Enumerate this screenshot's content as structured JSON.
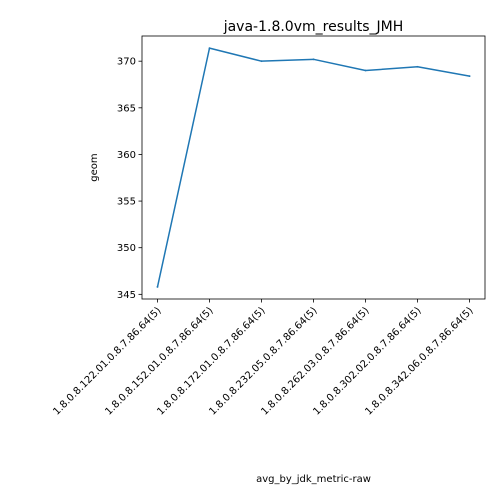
{
  "chart_data": {
    "type": "line",
    "title": "java-1.8.0vm_results_JMH",
    "xlabel": "avg_by_jdk_metric-raw",
    "ylabel": "geom",
    "categories": [
      "1.8.0.8.122.01.0.8.7.86.64(5)",
      "1.8.0.8.152.01.0.8.7.86.64(5)",
      "1.8.0.8.172.01.0.8.7.86.64(5)",
      "1.8.0.8.232.05.0.8.7.86.64(5)",
      "1.8.0.8.262.03.0.8.7.86.64(5)",
      "1.8.0.8.302.02.0.8.7.86.64(5)",
      "1.8.0.8.342.06.0.8.7.86.64(5)"
    ],
    "series": [
      {
        "values": [
          345.8,
          371.4,
          370.0,
          370.2,
          369.0,
          369.4,
          368.4
        ],
        "color": "#1f77b4"
      }
    ],
    "ylim": [
      344.5,
      372.7
    ],
    "yticks": [
      345,
      350,
      355,
      360,
      365,
      370
    ],
    "grid": false,
    "legend": "none"
  }
}
